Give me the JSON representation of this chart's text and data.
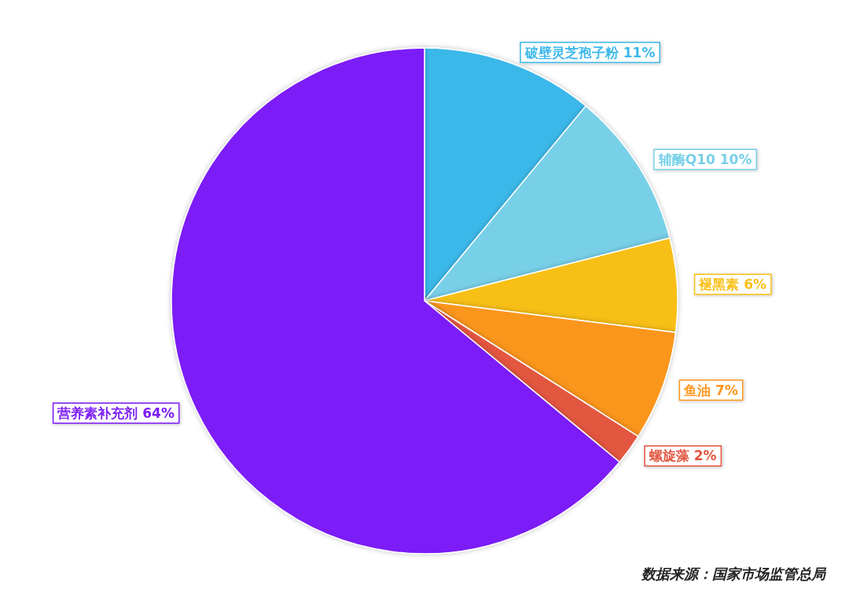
{
  "chart_data": {
    "type": "pie",
    "categories": [
      "破壁灵芝孢子粉",
      "辅酶Q10",
      "褪黑素",
      "鱼油",
      "螺旋藻",
      "营养素补充剂"
    ],
    "values": [
      11,
      10,
      6,
      7,
      2,
      64
    ],
    "value_labels": [
      "11%",
      "10%",
      "6%",
      "7%",
      "2%",
      "64%"
    ],
    "colors": [
      "#3bb8ea",
      "#78d0e8",
      "#f8c019",
      "#fb961f",
      "#e35641",
      "#7c1cf6"
    ],
    "legend": false,
    "annotations": [
      "数据来源：国家市场监管总局"
    ]
  }
}
